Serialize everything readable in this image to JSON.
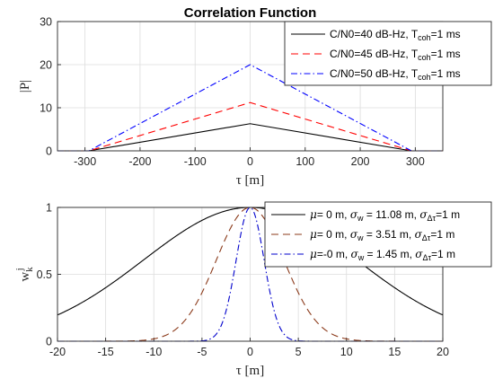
{
  "chart_data": [
    {
      "type": "line",
      "title": "Correlation Function",
      "xlabel": "τ [m]",
      "ylabel": "|P|",
      "xlim": [
        -350,
        350
      ],
      "ylim": [
        0,
        30
      ],
      "xticks": [
        "-300",
        "-200",
        "-100",
        "0",
        "100",
        "200",
        "300"
      ],
      "yticks": [
        "0",
        "10",
        "20",
        "30"
      ],
      "grid": true,
      "legend_position": "top-right",
      "series": [
        {
          "name": "C/N0=40 dB-Hz, Tcoh=1 ms",
          "name_main": "C/N0=40 dB-Hz, T",
          "name_sub": "coh",
          "name_tail": "=1 ms",
          "color": "#000000",
          "style": "solid",
          "x": [
            -350,
            -293,
            0,
            293,
            350
          ],
          "y": [
            0,
            0,
            6.3,
            0,
            0
          ]
        },
        {
          "name": "C/N0=45 dB-Hz, Tcoh=1 ms",
          "name_main": "C/N0=45 dB-Hz, T",
          "name_sub": "coh",
          "name_tail": "=1 ms",
          "color": "#ff0000",
          "style": "dashed",
          "x": [
            -350,
            -293,
            0,
            293,
            350
          ],
          "y": [
            0,
            0,
            11.2,
            0,
            0
          ]
        },
        {
          "name": "C/N0=50 dB-Hz, Tcoh=1 ms",
          "name_main": "C/N0=50 dB-Hz, T",
          "name_sub": "coh",
          "name_tail": "=1 ms",
          "color": "#0000ff",
          "style": "dashdot",
          "x": [
            -350,
            -293,
            0,
            293,
            350
          ],
          "y": [
            0,
            0,
            20,
            0,
            0
          ]
        }
      ]
    },
    {
      "type": "line",
      "title": "",
      "xlabel": "τ [m]",
      "ylabel_main": "w",
      "ylabel_sub": "k",
      "ylabel_sup": "j",
      "xlim": [
        -20,
        20
      ],
      "ylim": [
        0,
        1
      ],
      "xticks": [
        "-20",
        "-15",
        "-10",
        "-5",
        "0",
        "5",
        "10",
        "15",
        "20"
      ],
      "yticks": [
        "0",
        "0.5",
        "1"
      ],
      "grid": true,
      "legend_position": "top-right",
      "series": [
        {
          "name": "μ= 0 m, σw = 11.08 m, σΔτ=1 m",
          "mu_text": "= 0 m, ",
          "w_text": " = 11.08 m, ",
          "tail_text": "=1 m",
          "mu": 0,
          "sigma": 11.08,
          "color": "#000000",
          "style": "solid"
        },
        {
          "name": "μ= 0 m, σw = 3.51 m, σΔτ=1 m",
          "mu_text": "= 0 m, ",
          "w_text": " = 3.51 m, ",
          "tail_text": "=1 m",
          "mu": 0,
          "sigma": 3.51,
          "color": "#8b3a1a",
          "style": "dashed"
        },
        {
          "name": "μ=-0 m, σw = 1.45 m, σΔτ=1 m",
          "mu_text": "=-0 m, ",
          "w_text": " = 1.45 m, ",
          "tail_text": "=1 m",
          "mu": 0,
          "sigma": 1.45,
          "color": "#0000cc",
          "style": "dashdot"
        }
      ]
    }
  ]
}
